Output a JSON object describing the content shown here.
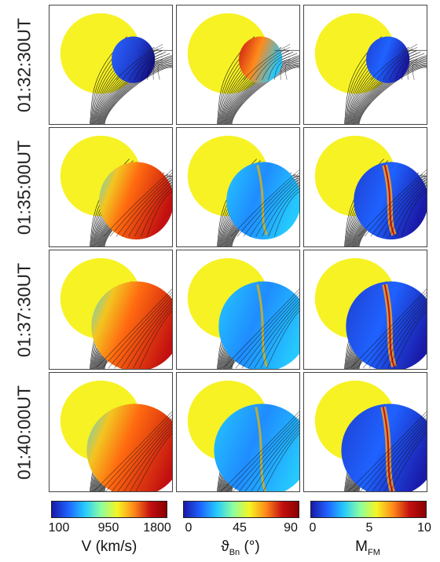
{
  "rows": [
    {
      "time": "01:32:30UT"
    },
    {
      "time": "01:35:00UT"
    },
    {
      "time": "01:37:30UT"
    },
    {
      "time": "01:40:00UT"
    }
  ],
  "colorbars": [
    {
      "ticks": [
        "100",
        "950",
        "1800"
      ],
      "label": "V (km/s)",
      "gradient": [
        "#1a1aa8",
        "#1f62ff",
        "#25c9ff",
        "#8cffa0",
        "#f5f523",
        "#ff8a1a",
        "#c41010",
        "#8a0000"
      ]
    },
    {
      "ticks": [
        "0",
        "45",
        "90"
      ],
      "label_main": "ϑ",
      "label_sub": "Bn",
      "label_unit": " (°)",
      "gradient": [
        "#1a1aa8",
        "#1f62ff",
        "#25c9ff",
        "#8cffa0",
        "#f5f523",
        "#ff8a1a",
        "#c41010",
        "#8a0000"
      ]
    },
    {
      "ticks": [
        "0",
        "5",
        "10"
      ],
      "label_main": "M",
      "label_sub": "FM",
      "gradient": [
        "#1a1aa8",
        "#1f62ff",
        "#25c9ff",
        "#8cffa0",
        "#f5f523",
        "#ff8a1a",
        "#c41010",
        "#8a0000"
      ]
    }
  ],
  "colors": {
    "sun": "#f7f224",
    "frame": "#444444",
    "fieldlines": "#111111"
  }
}
